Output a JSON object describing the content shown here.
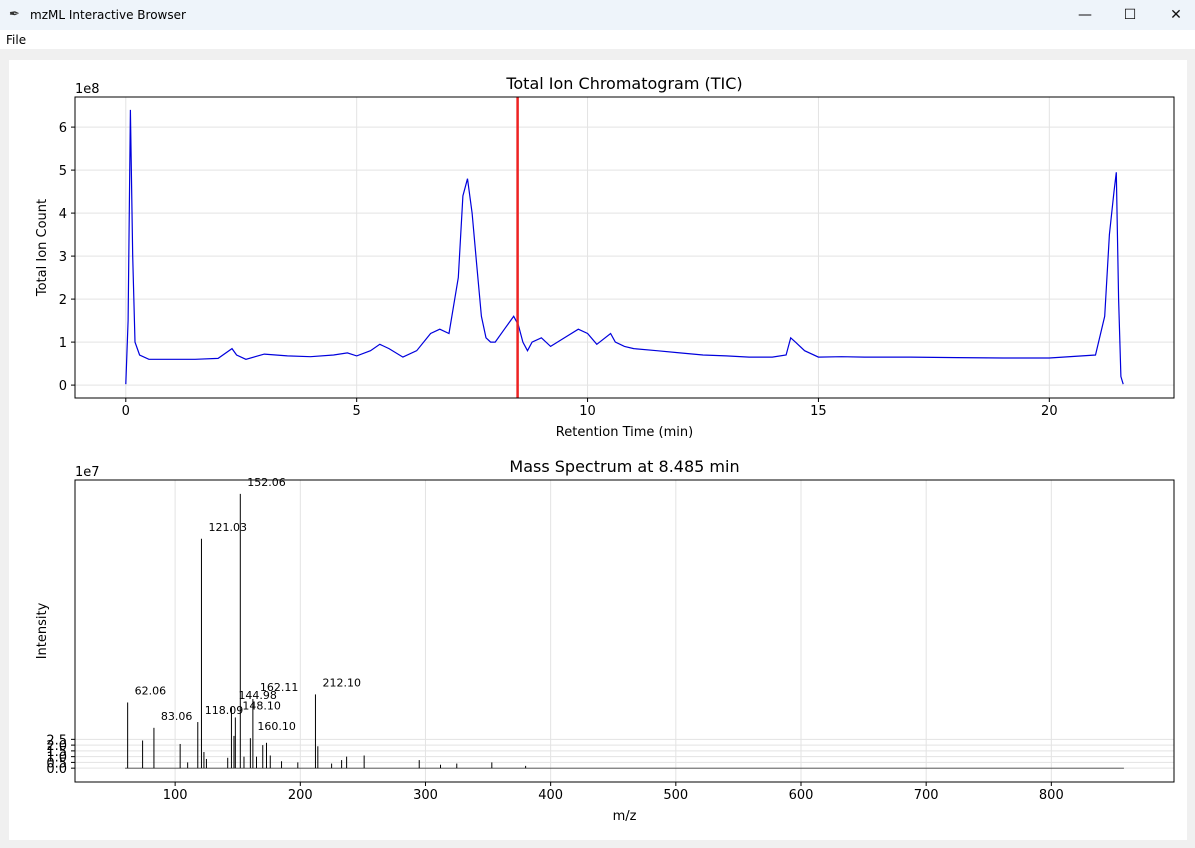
{
  "window": {
    "title": "mzML Interactive Browser",
    "icon": "feather-icon",
    "controls": {
      "minimize": "—",
      "maximize": "☐",
      "close": "✕"
    }
  },
  "menu": {
    "file_label": "File"
  },
  "chart_data": [
    {
      "type": "line",
      "title": "Total Ion Chromatogram (TIC)",
      "xlabel": "Retention Time (min)",
      "ylabel": "Total Ion Count",
      "y_multiplier": "1e8",
      "xlim": [
        -1.1,
        22.7
      ],
      "ylim": [
        -0.3,
        6.7
      ],
      "x_ticks": [
        0,
        5,
        10,
        15,
        20
      ],
      "y_ticks": [
        0,
        1,
        2,
        3,
        4,
        5,
        6
      ],
      "grid": true,
      "line_color": "#0000dd",
      "marker_line": {
        "x": 8.485,
        "color": "#ee2222"
      },
      "series": [
        {
          "x": [
            0,
            0.05,
            0.1,
            0.15,
            0.2,
            0.3,
            0.5,
            1,
            1.5,
            2,
            2.3,
            2.4,
            2.6,
            3,
            3.5,
            4,
            4.5,
            4.8,
            5,
            5.3,
            5.5,
            5.7,
            6,
            6.3,
            6.6,
            6.8,
            7,
            7.2,
            7.3,
            7.35,
            7.4,
            7.5,
            7.6,
            7.7,
            7.8,
            7.9,
            8,
            8.2,
            8.4,
            8.5,
            8.6,
            8.7,
            8.8,
            9,
            9.2,
            9.5,
            9.8,
            10,
            10.2,
            10.5,
            10.6,
            10.8,
            11,
            11.5,
            12,
            12.5,
            13,
            13.5,
            14,
            14.3,
            14.4,
            14.5,
            14.7,
            15,
            15.5,
            16,
            17,
            18,
            19,
            20,
            21,
            21.2,
            21.3,
            21.4,
            21.45,
            21.5,
            21.55,
            21.6
          ],
          "y": [
            0.02,
            1.5,
            6.4,
            3.0,
            1.0,
            0.7,
            0.6,
            0.6,
            0.6,
            0.62,
            0.85,
            0.7,
            0.6,
            0.72,
            0.68,
            0.66,
            0.7,
            0.75,
            0.68,
            0.8,
            0.95,
            0.85,
            0.65,
            0.8,
            1.2,
            1.3,
            1.2,
            2.5,
            4.4,
            4.6,
            4.8,
            4.0,
            2.8,
            1.6,
            1.1,
            1.0,
            1.0,
            1.3,
            1.6,
            1.4,
            1.0,
            0.8,
            1.0,
            1.1,
            0.9,
            1.1,
            1.3,
            1.2,
            0.95,
            1.2,
            1.0,
            0.9,
            0.85,
            0.8,
            0.75,
            0.7,
            0.68,
            0.65,
            0.65,
            0.7,
            1.1,
            1.0,
            0.8,
            0.65,
            0.66,
            0.65,
            0.65,
            0.64,
            0.63,
            0.63,
            0.7,
            1.6,
            3.5,
            4.5,
            4.95,
            2.0,
            0.2,
            0.02
          ]
        }
      ]
    },
    {
      "type": "stem",
      "title": "Mass Spectrum at 8.485 min",
      "xlabel": "m/z",
      "ylabel": "Intensity",
      "y_multiplier": "1e7",
      "xlim": [
        20,
        898
      ],
      "ylim": [
        -1.2,
        25
      ],
      "x_ticks": [
        100,
        200,
        300,
        400,
        500,
        600,
        700,
        800
      ],
      "y_ticks": [
        0.0,
        0.5,
        1.0,
        1.5,
        2.0,
        2.5
      ],
      "y_tick_labels": [
        "0.0",
        "0.5",
        "1.0",
        "1.5",
        "2.0",
        "2.5"
      ],
      "grid": true,
      "mz_range": [
        60,
        858
      ],
      "peaks": [
        {
          "mz": 62.06,
          "intensity": 5.7,
          "label": "62.06"
        },
        {
          "mz": 74.0,
          "intensity": 2.4
        },
        {
          "mz": 83.06,
          "intensity": 3.5,
          "label": "83.06"
        },
        {
          "mz": 104.0,
          "intensity": 2.1
        },
        {
          "mz": 110.0,
          "intensity": 0.5
        },
        {
          "mz": 118.09,
          "intensity": 4.0,
          "label": "118.09"
        },
        {
          "mz": 121.03,
          "intensity": 19.9,
          "label": "121.03"
        },
        {
          "mz": 123.0,
          "intensity": 1.4
        },
        {
          "mz": 125.0,
          "intensity": 0.8
        },
        {
          "mz": 142.0,
          "intensity": 0.9
        },
        {
          "mz": 144.98,
          "intensity": 5.3,
          "label": "144.98"
        },
        {
          "mz": 147.0,
          "intensity": 2.8
        },
        {
          "mz": 148.1,
          "intensity": 4.4,
          "label": "148.10"
        },
        {
          "mz": 152.06,
          "intensity": 23.8,
          "label": "152.06"
        },
        {
          "mz": 155.0,
          "intensity": 1.0
        },
        {
          "mz": 160.1,
          "intensity": 2.6,
          "label": "160.10"
        },
        {
          "mz": 162.11,
          "intensity": 6.0,
          "label": "162.11"
        },
        {
          "mz": 165.0,
          "intensity": 1.0
        },
        {
          "mz": 170.0,
          "intensity": 2.0
        },
        {
          "mz": 173.0,
          "intensity": 2.2
        },
        {
          "mz": 176.0,
          "intensity": 1.1
        },
        {
          "mz": 185.0,
          "intensity": 0.6
        },
        {
          "mz": 198.0,
          "intensity": 0.5
        },
        {
          "mz": 212.1,
          "intensity": 6.4,
          "label": "212.10"
        },
        {
          "mz": 214.0,
          "intensity": 1.9
        },
        {
          "mz": 225.0,
          "intensity": 0.4
        },
        {
          "mz": 233.0,
          "intensity": 0.7
        },
        {
          "mz": 237.0,
          "intensity": 1.0
        },
        {
          "mz": 251.0,
          "intensity": 1.1
        },
        {
          "mz": 295.0,
          "intensity": 0.7
        },
        {
          "mz": 312.0,
          "intensity": 0.3
        },
        {
          "mz": 325.0,
          "intensity": 0.4
        },
        {
          "mz": 353.0,
          "intensity": 0.5
        },
        {
          "mz": 380.0,
          "intensity": 0.2
        }
      ]
    }
  ]
}
